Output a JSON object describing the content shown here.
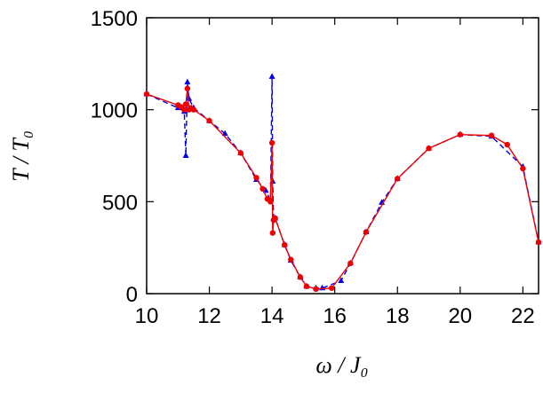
{
  "chart_data": {
    "type": "line",
    "x_label": "ω / J₀",
    "y_label": "T / T₀",
    "xlim": [
      10,
      22.5
    ],
    "xticks": [
      10,
      12,
      14,
      16,
      18,
      20,
      22
    ],
    "ylim": [
      0,
      1500
    ],
    "yticks": [
      0,
      500,
      1000,
      1500
    ],
    "series": [
      {
        "color": "#0000ee",
        "dash": true,
        "marker": "triangle",
        "x": [
          10,
          11,
          11.2,
          11.25,
          11.3,
          11.35,
          11.5,
          12,
          12.5,
          13,
          13.5,
          13.8,
          13.95,
          14.0,
          14.02,
          14.05,
          14.1,
          14.4,
          14.6,
          14.9,
          15.1,
          15.4,
          15.6,
          16.2,
          16.5,
          17.0,
          17.5,
          18,
          19,
          20,
          21,
          22,
          22.5
        ],
        "values": [
          1085,
          1010,
          990,
          750,
          1150,
          1060,
          1010,
          940,
          870,
          765,
          620,
          560,
          510,
          1180,
          610,
          410,
          410,
          265,
          180,
          90,
          40,
          30,
          30,
          70,
          165,
          335,
          495,
          625,
          790,
          865,
          855,
          690,
          280
        ]
      },
      {
        "color": "#ee0000",
        "dash": false,
        "marker": "circle",
        "x": [
          10,
          11.0,
          11.1,
          11.2,
          11.25,
          11.3,
          11.35,
          11.4,
          11.5,
          12,
          13,
          13.5,
          13.7,
          13.85,
          13.95,
          14.0,
          14.02,
          14.05,
          14.1,
          14.4,
          14.6,
          14.9,
          15.1,
          15.4,
          15.9,
          16.5,
          17.0,
          18,
          19,
          20,
          21,
          21.5,
          22,
          22.5
        ],
        "values": [
          1085,
          1025,
          1015,
          1000,
          1030,
          1115,
          1000,
          1010,
          1000,
          940,
          765,
          630,
          570,
          515,
          500,
          820,
          330,
          400,
          410,
          265,
          185,
          90,
          40,
          25,
          30,
          165,
          335,
          625,
          790,
          865,
          860,
          810,
          680,
          280
        ]
      }
    ]
  }
}
